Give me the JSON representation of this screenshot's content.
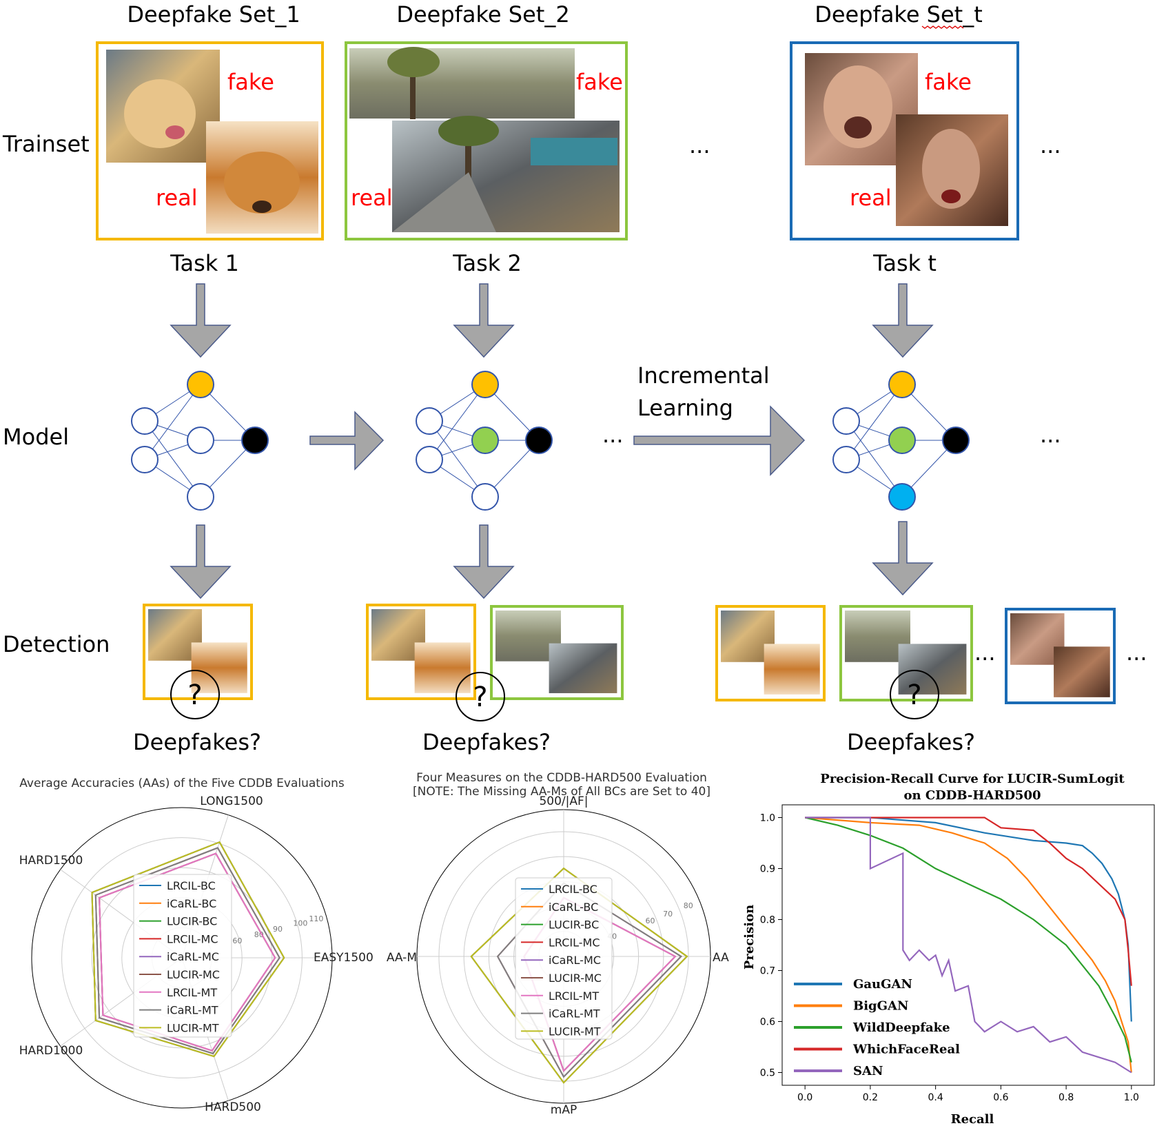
{
  "columns": [
    {
      "set_title": "Deepfake Set_1",
      "task": "Task 1",
      "fake": "fake",
      "real": "real"
    },
    {
      "set_title": "Deepfake Set_2",
      "task": "Task 2",
      "fake": "fake",
      "real": "real"
    },
    {
      "set_title": "Deepfake Set_t",
      "task": "Task t",
      "fake": "fake",
      "real": "real"
    }
  ],
  "rows": {
    "trainset": "Trainset",
    "model": "Model",
    "detection": "Detection"
  },
  "ellipsis": "...",
  "incremental": {
    "line1": "Incremental",
    "line2": "Learning"
  },
  "question": "Deepfakes?",
  "colors": {
    "set1": "#f5b800",
    "set2": "#8dc63f",
    "set3": "#1a6bb5",
    "arrow": "#a6a6a6",
    "node_line": "#3355aa",
    "node_yellow": "#ffc000",
    "node_green": "#92d050",
    "node_cyan": "#00b0f0"
  },
  "radar1": {
    "title": "Average Accuracies (AAs) of the Five CDDB Evaluations",
    "axes": [
      "EASY1500",
      "LONG1500",
      "HARD1500",
      "HARD1000",
      "HARD500"
    ],
    "ticks": [
      "60",
      "80",
      "90",
      "100",
      "110"
    ],
    "legend": [
      "LRCIL-BC",
      "iCaRL-BC",
      "LUCIR-BC",
      "LRCIL-MC",
      "iCaRL-MC",
      "LUCIR-MC",
      "LRCIL-MT",
      "iCaRL-MT",
      "LUCIR-MT"
    ]
  },
  "radar2": {
    "title_line1": "Four Measures on the CDDB-HARD500 Evaluation",
    "title_line2": "[NOTE: The Missing AA-Ms of All BCs are Set to 40]",
    "axes": [
      "AA",
      "500/|AF|",
      "AA-M",
      "mAP"
    ],
    "ticks": [
      "40",
      "60",
      "70",
      "80"
    ],
    "legend": [
      "LRCIL-BC",
      "iCaRL-BC",
      "LUCIR-BC",
      "LRCIL-MC",
      "iCaRL-MC",
      "LUCIR-MC",
      "LRCIL-MT",
      "iCaRL-MT",
      "LUCIR-MT"
    ]
  },
  "series_colors": [
    "#1f77b4",
    "#ff7f0e",
    "#2ca02c",
    "#d62728",
    "#9467bd",
    "#8c564b",
    "#e377c2",
    "#7f7f7f",
    "#bcbd22"
  ],
  "chart_data": {
    "type": "line",
    "title": "Precision-Recall Curve for LUCIR-SumLogit on CDDB-HARD500",
    "title_line1": "Precision-Recall Curve for LUCIR-SumLogit",
    "title_line2": "on CDDB-HARD500",
    "xlabel": "Recall",
    "ylabel": "Precision",
    "xlim": [
      0.0,
      1.0
    ],
    "ylim": [
      0.5,
      1.0
    ],
    "xticks": [
      "0.0",
      "0.2",
      "0.4",
      "0.6",
      "0.8",
      "1.0"
    ],
    "yticks": [
      "0.5",
      "0.6",
      "0.7",
      "0.8",
      "0.9",
      "1.0"
    ],
    "legend_position": "lower-left",
    "series": [
      {
        "name": "GauGAN",
        "color": "#1f77b4",
        "x": [
          0.0,
          0.2,
          0.4,
          0.55,
          0.7,
          0.8,
          0.85,
          0.88,
          0.91,
          0.94,
          0.96,
          0.98,
          0.99,
          1.0
        ],
        "y": [
          1.0,
          1.0,
          0.99,
          0.97,
          0.955,
          0.95,
          0.945,
          0.93,
          0.91,
          0.88,
          0.85,
          0.8,
          0.75,
          0.6
        ]
      },
      {
        "name": "BigGAN",
        "color": "#ff7f0e",
        "x": [
          0.0,
          0.2,
          0.35,
          0.45,
          0.55,
          0.62,
          0.68,
          0.73,
          0.78,
          0.83,
          0.88,
          0.92,
          0.95,
          0.97,
          0.99,
          1.0
        ],
        "y": [
          1.0,
          0.99,
          0.985,
          0.97,
          0.95,
          0.92,
          0.88,
          0.84,
          0.8,
          0.76,
          0.72,
          0.68,
          0.64,
          0.6,
          0.56,
          0.5
        ]
      },
      {
        "name": "WildDeepfake",
        "color": "#2ca02c",
        "x": [
          0.0,
          0.1,
          0.2,
          0.3,
          0.4,
          0.5,
          0.6,
          0.7,
          0.8,
          0.85,
          0.9,
          0.95,
          0.98,
          1.0
        ],
        "y": [
          1.0,
          0.985,
          0.965,
          0.94,
          0.9,
          0.87,
          0.84,
          0.8,
          0.75,
          0.71,
          0.67,
          0.61,
          0.57,
          0.52
        ]
      },
      {
        "name": "WhichFaceReal",
        "color": "#d62728",
        "x": [
          0.0,
          0.55,
          0.6,
          0.7,
          0.75,
          0.8,
          0.85,
          0.9,
          0.95,
          0.98,
          0.99,
          1.0
        ],
        "y": [
          1.0,
          1.0,
          0.98,
          0.975,
          0.95,
          0.92,
          0.9,
          0.87,
          0.84,
          0.8,
          0.74,
          0.67
        ]
      },
      {
        "name": "SAN",
        "color": "#9467bd",
        "x": [
          0.0,
          0.2,
          0.2,
          0.3,
          0.3,
          0.32,
          0.35,
          0.38,
          0.4,
          0.42,
          0.44,
          0.46,
          0.5,
          0.52,
          0.55,
          0.6,
          0.65,
          0.7,
          0.75,
          0.8,
          0.85,
          0.9,
          0.95,
          1.0
        ],
        "y": [
          1.0,
          1.0,
          0.9,
          0.93,
          0.74,
          0.72,
          0.74,
          0.72,
          0.73,
          0.69,
          0.72,
          0.66,
          0.67,
          0.6,
          0.58,
          0.6,
          0.58,
          0.59,
          0.56,
          0.57,
          0.54,
          0.53,
          0.52,
          0.5
        ]
      }
    ]
  }
}
